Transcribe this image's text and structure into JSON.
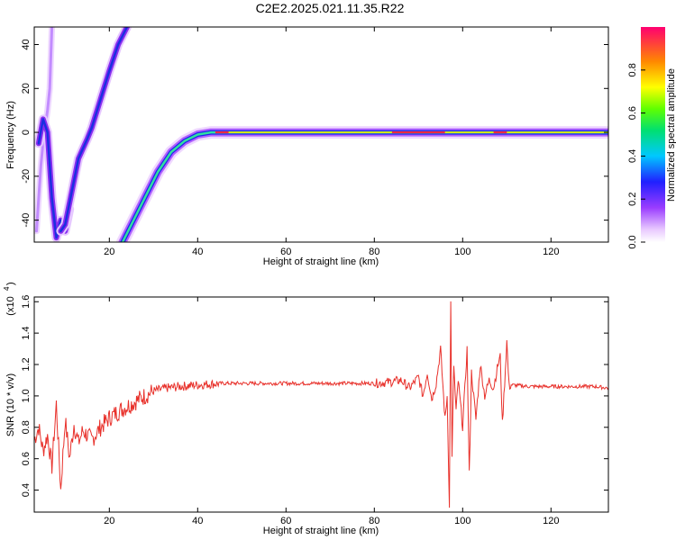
{
  "title": "C2E2.2025.021.11.35.R22",
  "chart_data": [
    {
      "type": "heatmap",
      "xlabel": "Height of straight line (km)",
      "ylabel": "Frequency (Hz)",
      "xlim": [
        3,
        133
      ],
      "ylim": [
        -50,
        48
      ],
      "xticks": [
        20,
        40,
        60,
        80,
        100,
        120
      ],
      "yticks": [
        -40,
        -20,
        0,
        20,
        40
      ],
      "colorbar": {
        "label": "Normalized spectral amplitude",
        "range": [
          0,
          1
        ],
        "ticks": [
          0.0,
          0.2,
          0.4,
          0.6,
          0.8
        ],
        "tick_labels": [
          "0.0",
          "0.2",
          "0.4",
          "0.6",
          "0.8"
        ]
      },
      "ridges": [
        {
          "x": [
            3.5,
            4,
            4.5,
            5,
            5.5,
            6,
            6.5,
            7
          ],
          "y": [
            -45,
            -30,
            -15,
            -5,
            3,
            10,
            20,
            48
          ],
          "amplitude": 0.1
        },
        {
          "x": [
            4,
            5,
            6,
            7,
            8,
            9,
            10,
            11
          ],
          "y": [
            -5,
            6,
            0,
            -30,
            -48,
            -40,
            -45,
            -35
          ],
          "amplitude": 0.3
        },
        {
          "x": [
            9,
            10,
            11,
            13,
            15,
            16,
            18,
            20,
            22,
            24
          ],
          "y": [
            -45,
            -42,
            -32,
            -12,
            -3,
            2,
            15,
            28,
            40,
            48
          ],
          "amplitude": 0.45
        },
        {
          "x": [
            23,
            25,
            28,
            31,
            34,
            37,
            40,
            43,
            50,
            60,
            70,
            80,
            90,
            96,
            100,
            110,
            120,
            133
          ],
          "y": [
            -50,
            -42,
            -30,
            -18,
            -9,
            -4,
            -1,
            0,
            0,
            0,
            0,
            0,
            0,
            0,
            0,
            0,
            0,
            0
          ],
          "amplitude": 0.75
        }
      ]
    },
    {
      "type": "line",
      "xlabel": "Height of straight line (km)",
      "ylabel": "SNR (10 * v/v)",
      "multiplier": "(x10",
      "multiplier_exp": "4",
      "xlim": [
        3,
        133
      ],
      "ylim": [
        0.26,
        1.63
      ],
      "xticks": [
        20,
        40,
        60,
        80,
        100,
        120
      ],
      "yticks": [
        0.4,
        0.6,
        0.8,
        1.0,
        1.2,
        1.4,
        1.6
      ],
      "ytick_labels": [
        "0.4",
        "0.6",
        "0.8",
        "1.0",
        "1.2",
        "1.4",
        "1.6"
      ],
      "color": "#e8312b",
      "series": [
        {
          "x": [
            3,
            4,
            5,
            6,
            7,
            8,
            9,
            10,
            11,
            12,
            13,
            14,
            16,
            18,
            20,
            22,
            25,
            28,
            30,
            33,
            36,
            40,
            45,
            50,
            55,
            60,
            65,
            70,
            75,
            80,
            84,
            86,
            88,
            90,
            91,
            92,
            93,
            94,
            95,
            96,
            96.5,
            97,
            97.3,
            97.6,
            98,
            98.5,
            99,
            100,
            101,
            101.5,
            102,
            103,
            104,
            105,
            106,
            107,
            108,
            108.5,
            109,
            110,
            110.5,
            111,
            115,
            120,
            125,
            130,
            133
          ],
          "values": [
            0.72,
            0.8,
            0.65,
            0.75,
            0.55,
            0.95,
            0.4,
            0.85,
            0.6,
            0.82,
            0.7,
            0.78,
            0.72,
            0.8,
            0.86,
            0.9,
            0.95,
            1.0,
            1.03,
            1.05,
            1.06,
            1.07,
            1.08,
            1.08,
            1.08,
            1.08,
            1.08,
            1.08,
            1.08,
            1.08,
            1.09,
            1.1,
            1.05,
            1.12,
            1.0,
            1.15,
            0.98,
            1.08,
            1.3,
            0.85,
            1.0,
            0.28,
            1.62,
            0.6,
            1.2,
            0.9,
            1.1,
            0.8,
            1.3,
            0.5,
            1.15,
            0.85,
            1.2,
            1.0,
            1.1,
            1.05,
            1.2,
            1.25,
            0.82,
            1.35,
            1.06,
            1.07,
            1.06,
            1.06,
            1.06,
            1.06,
            1.05
          ]
        }
      ]
    }
  ]
}
